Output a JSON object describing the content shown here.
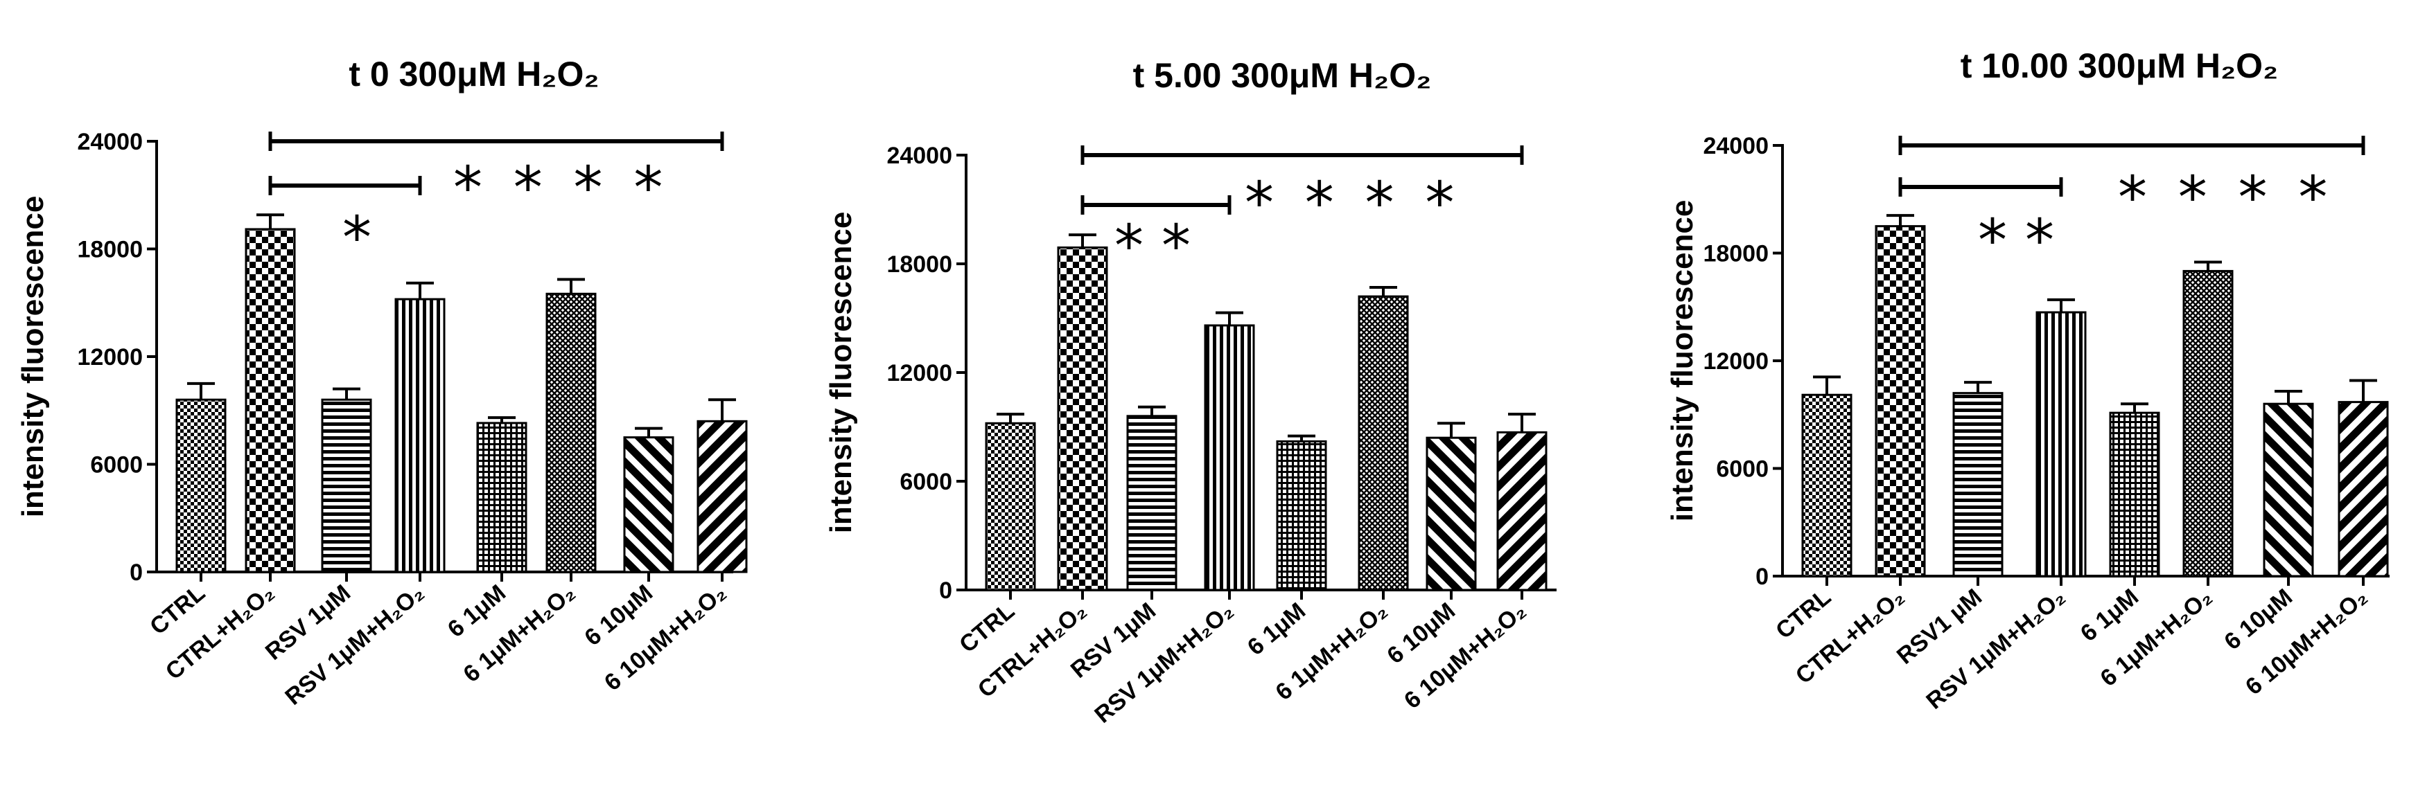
{
  "colors": {
    "ink": "#000000",
    "background": "#ffffff"
  },
  "chart_data": [
    {
      "type": "bar",
      "title": "t 0  300μM H₂O₂",
      "xlabel": "",
      "ylabel": "intensity fluorescence",
      "ylim": [
        0,
        24000
      ],
      "yticks": [
        "0",
        "6000",
        "12000",
        "18000",
        "24000"
      ],
      "categories": [
        "CTRL",
        "CTRL+H₂O₂",
        "RSV 1μM",
        "RSV 1μM+H₂O₂",
        "6  1μM",
        "6  1μM+H₂O₂",
        "6  10μM",
        "6  10μM+H₂O₂"
      ],
      "values": [
        9600,
        19100,
        9600,
        15200,
        8300,
        15500,
        7500,
        8400
      ],
      "errors": [
        900,
        800,
        600,
        900,
        300,
        800,
        500,
        1200
      ],
      "patterns": [
        "checker-fine",
        "checker",
        "hlines",
        "vlines",
        "grid-fine",
        "crosshatch-dense",
        "diag-back",
        "diag-fwd"
      ],
      "significance": [
        {
          "from": 1,
          "to": 7,
          "level": "top",
          "label": "****"
        },
        {
          "from": 1,
          "to": 3,
          "level": "lower",
          "label": "*"
        }
      ]
    },
    {
      "type": "bar",
      "title": "t 5.00  300μM H₂O₂",
      "xlabel": "",
      "ylabel": "intensity fluorescence",
      "ylim": [
        0,
        24000
      ],
      "yticks": [
        "0",
        "6000",
        "12000",
        "18000",
        "24000"
      ],
      "categories": [
        "CTRL",
        "CTRL+H₂O₂",
        "RSV 1μM",
        "RSV 1μM+H₂O₂",
        "6  1μM",
        "6  1μM+H₂O₂",
        "6  10μM",
        "6  10μM+H₂O₂"
      ],
      "values": [
        9200,
        18900,
        9600,
        14600,
        8200,
        16200,
        8400,
        8700
      ],
      "errors": [
        500,
        700,
        500,
        700,
        300,
        500,
        800,
        1000
      ],
      "patterns": [
        "checker-fine",
        "checker",
        "hlines",
        "vlines",
        "grid-fine",
        "crosshatch-dense",
        "diag-back",
        "diag-fwd"
      ],
      "significance": [
        {
          "from": 1,
          "to": 7,
          "level": "top",
          "label": "****"
        },
        {
          "from": 1,
          "to": 3,
          "level": "lower",
          "label": "**"
        }
      ]
    },
    {
      "type": "bar",
      "title": "t 10.00   300μM H₂O₂",
      "xlabel": "",
      "ylabel": "intensity fluorescence",
      "ylim": [
        0,
        24000
      ],
      "yticks": [
        "0",
        "6000",
        "12000",
        "18000",
        "24000"
      ],
      "categories": [
        "CTRL",
        "CTRL+H₂O₂",
        "RSV1 μM",
        "RSV 1μM+H₂O₂",
        "6  1μM",
        "6  1μM+H₂O₂",
        "6  10μM",
        "6  10μM+H₂O₂"
      ],
      "values": [
        10100,
        19500,
        10200,
        14700,
        9100,
        17000,
        9600,
        9700
      ],
      "errors": [
        1000,
        600,
        600,
        700,
        500,
        500,
        700,
        1200
      ],
      "patterns": [
        "checker-fine",
        "checker",
        "hlines",
        "vlines",
        "grid-fine",
        "crosshatch-dense",
        "diag-back",
        "diag-fwd"
      ],
      "significance": [
        {
          "from": 1,
          "to": 7,
          "level": "top",
          "label": "****"
        },
        {
          "from": 1,
          "to": 3,
          "level": "lower",
          "label": "**"
        }
      ]
    }
  ]
}
